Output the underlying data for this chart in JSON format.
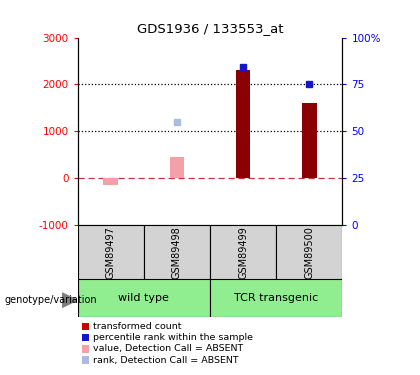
{
  "title": "GDS1936 / 133553_at",
  "samples": [
    "GSM89497",
    "GSM89498",
    "GSM89499",
    "GSM89500"
  ],
  "red_bars": [
    null,
    null,
    2300,
    1600
  ],
  "blue_sq_y": [
    null,
    null,
    2370,
    2000
  ],
  "pink_bars": [
    -150,
    450,
    null,
    null
  ],
  "lavender_sq_y": [
    null,
    1200,
    null,
    null
  ],
  "ylim_left": [
    -1000,
    3000
  ],
  "ylim_right": [
    0,
    100
  ],
  "yticks_left": [
    -1000,
    0,
    1000,
    2000,
    3000
  ],
  "yticks_right": [
    0,
    25,
    50,
    75,
    100
  ],
  "right_tick_labels": [
    "0",
    "25",
    "50",
    "75",
    "100%"
  ],
  "group_color": "#90EE90",
  "sample_box_color": "#D3D3D3",
  "red_color": "#8B0000",
  "blue_color": "#1515CC",
  "pink_color": "#F4A0A8",
  "lavender_color": "#AABBDD",
  "legend_items": [
    {
      "label": "transformed count",
      "color": "#CC0000"
    },
    {
      "label": "percentile rank within the sample",
      "color": "#1515CC"
    },
    {
      "label": "value, Detection Call = ABSENT",
      "color": "#F4A0A8"
    },
    {
      "label": "rank, Detection Call = ABSENT",
      "color": "#AABBDD"
    }
  ]
}
